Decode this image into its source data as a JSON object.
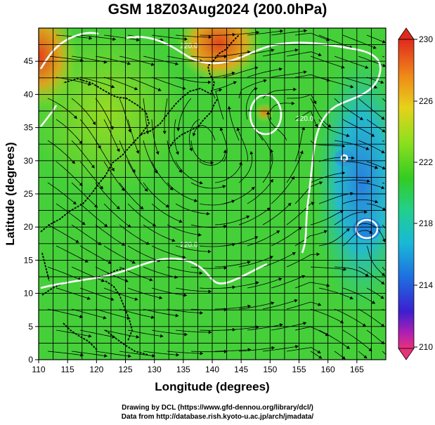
{
  "title": "GSM 18Z03Aug2024 (200.0hPa)",
  "map": {
    "xlabel": "Longitude (degrees)",
    "ylabel": "Latitude (degrees)",
    "xlim": [
      110,
      170
    ],
    "ylim": [
      0,
      50
    ],
    "xticks": [
      110,
      115,
      120,
      125,
      130,
      135,
      140,
      145,
      150,
      155,
      160,
      165
    ],
    "yticks": [
      0,
      5,
      10,
      15,
      20,
      25,
      30,
      35,
      40,
      45
    ],
    "grid": true,
    "field": "temperature shading with 200hPa streamlines",
    "contour_labels": [
      {
        "text": "220.0",
        "lon": 136,
        "lat": 47
      },
      {
        "text": "220.0",
        "lon": 156,
        "lat": 36
      },
      {
        "text": "220.0",
        "lon": 136,
        "lat": 17
      }
    ]
  },
  "colorbar": {
    "ticks": [
      "230",
      "226",
      "222",
      "218",
      "214",
      "210"
    ],
    "range": [
      210,
      230
    ],
    "colors": [
      "#e8327a",
      "#b01fb4",
      "#3b1fd0",
      "#1e6fe0",
      "#19b8d8",
      "#22d08a",
      "#33cc22",
      "#8fe01e",
      "#e6d21a",
      "#f08a18",
      "#e02a1e"
    ]
  },
  "credits": {
    "line1": "Drawing by DCL (https://www.gfd-dennou.org/library/dcl/)",
    "line2": "Data from http://database.rish.kyoto-u.ac.jp/arch/jmadata/"
  }
}
